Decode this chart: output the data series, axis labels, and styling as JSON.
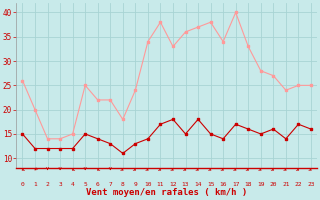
{
  "xlabel": "Vent moyen/en rafales ( km/h )",
  "background_color": "#c8eaea",
  "grid_color": "#a8d4d4",
  "hours": [
    0,
    1,
    2,
    3,
    4,
    5,
    6,
    7,
    8,
    9,
    10,
    11,
    12,
    13,
    14,
    15,
    16,
    17,
    18,
    19,
    20,
    21,
    22,
    23
  ],
  "wind_avg": [
    15,
    12,
    12,
    12,
    12,
    15,
    14,
    13,
    11,
    13,
    14,
    17,
    18,
    15,
    18,
    15,
    14,
    17,
    16,
    15,
    16,
    14,
    17,
    16
  ],
  "wind_gust": [
    26,
    20,
    14,
    14,
    15,
    25,
    22,
    22,
    18,
    24,
    34,
    38,
    33,
    36,
    37,
    38,
    34,
    40,
    33,
    28,
    27,
    24,
    25,
    25
  ],
  "avg_color": "#cc0000",
  "gust_color": "#ff9999",
  "ylim_min": 8,
  "ylim_max": 42,
  "yticks": [
    10,
    15,
    20,
    25,
    30,
    35,
    40
  ],
  "arrow_angles": [
    225,
    210,
    180,
    180,
    225,
    180,
    225,
    180,
    135,
    135,
    135,
    135,
    135,
    135,
    135,
    135,
    135,
    135,
    135,
    135,
    135,
    135,
    135,
    135
  ]
}
